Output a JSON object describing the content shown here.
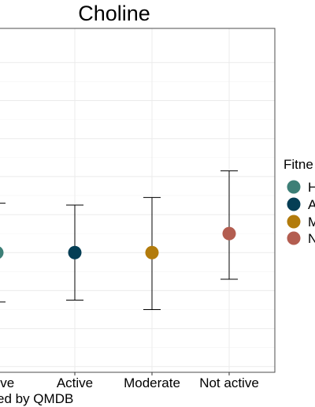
{
  "chart_data": {
    "type": "scatter",
    "title": "Choline",
    "xlabel": "ed by QMDB",
    "ylabel": "",
    "categories": [
      "active",
      "Active",
      "Moderate",
      "Not active"
    ],
    "series": [
      {
        "name": "H",
        "color": "#3D7F77",
        "points": [
          {
            "x": "active",
            "y": 0.2,
            "lower": -0.06,
            "upper": 0.46
          }
        ]
      },
      {
        "name": "A",
        "color": "#053E55",
        "points": [
          {
            "x": "Active",
            "y": 0.2,
            "lower": -0.05,
            "upper": 0.45
          }
        ]
      },
      {
        "name": "M",
        "color": "#B27B0C",
        "points": [
          {
            "x": "Moderate",
            "y": 0.2,
            "lower": -0.1,
            "upper": 0.49
          }
        ]
      },
      {
        "name": "N",
        "color": "#B35D50",
        "points": [
          {
            "x": "Not active",
            "y": 0.3,
            "lower": 0.06,
            "upper": 0.63
          }
        ]
      }
    ],
    "ylim": [
      -0.43,
      1.38
    ],
    "grid": true,
    "legend": {
      "title": "Fitne",
      "position": "right",
      "entries": [
        "H",
        "A",
        "M",
        "N"
      ]
    }
  }
}
